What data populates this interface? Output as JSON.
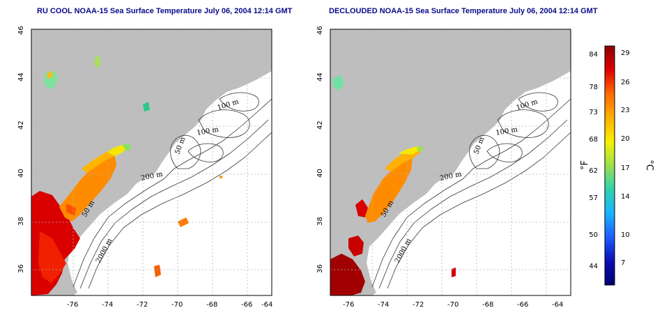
{
  "panels": [
    {
      "title": "RU COOL NOAA-15 Sea Surface Temperature July 06, 2004 12:14 GMT",
      "x_ticks": [
        "-76",
        "-74",
        "-72",
        "-70",
        "-68",
        "-66",
        "-64"
      ],
      "y_ticks": [
        "36",
        "38",
        "40",
        "42",
        "44",
        "46"
      ],
      "contour_labels": [
        "100 m",
        "100 m",
        "50 m",
        "200 m",
        "50 m",
        "2000 m"
      ]
    },
    {
      "title": "DECLOUDED NOAA-15 Sea Surface Temperature July 06, 2004 12:14 GMT",
      "x_ticks": [
        "-76",
        "-74",
        "-72",
        "-70",
        "-68",
        "-66",
        "-64"
      ],
      "y_ticks": [
        "36",
        "38",
        "40",
        "42",
        "44",
        "46"
      ],
      "contour_labels": [
        "100 m",
        "100 m",
        "50 m",
        "200 m",
        "50 m",
        "2000 m"
      ]
    }
  ],
  "colorbar": {
    "fahrenheit_ticks": [
      "84",
      "78",
      "73",
      "68",
      "62",
      "57",
      "50",
      "44"
    ],
    "celsius_ticks": [
      "29",
      "26",
      "23",
      "20",
      "17",
      "14",
      "10",
      "7"
    ],
    "fahrenheit_unit": "°F",
    "celsius_unit": "°C",
    "colors": [
      "#8b0000",
      "#e00000",
      "#ff6a00",
      "#ffb000",
      "#f7f000",
      "#9be04d",
      "#2fd2b0",
      "#19b4ff",
      "#1e5cff",
      "#0a10b4",
      "#000070"
    ]
  },
  "map_colors": {
    "land": "#bebebe",
    "water": "#ffffff",
    "gridline": "#b4b4b4"
  }
}
